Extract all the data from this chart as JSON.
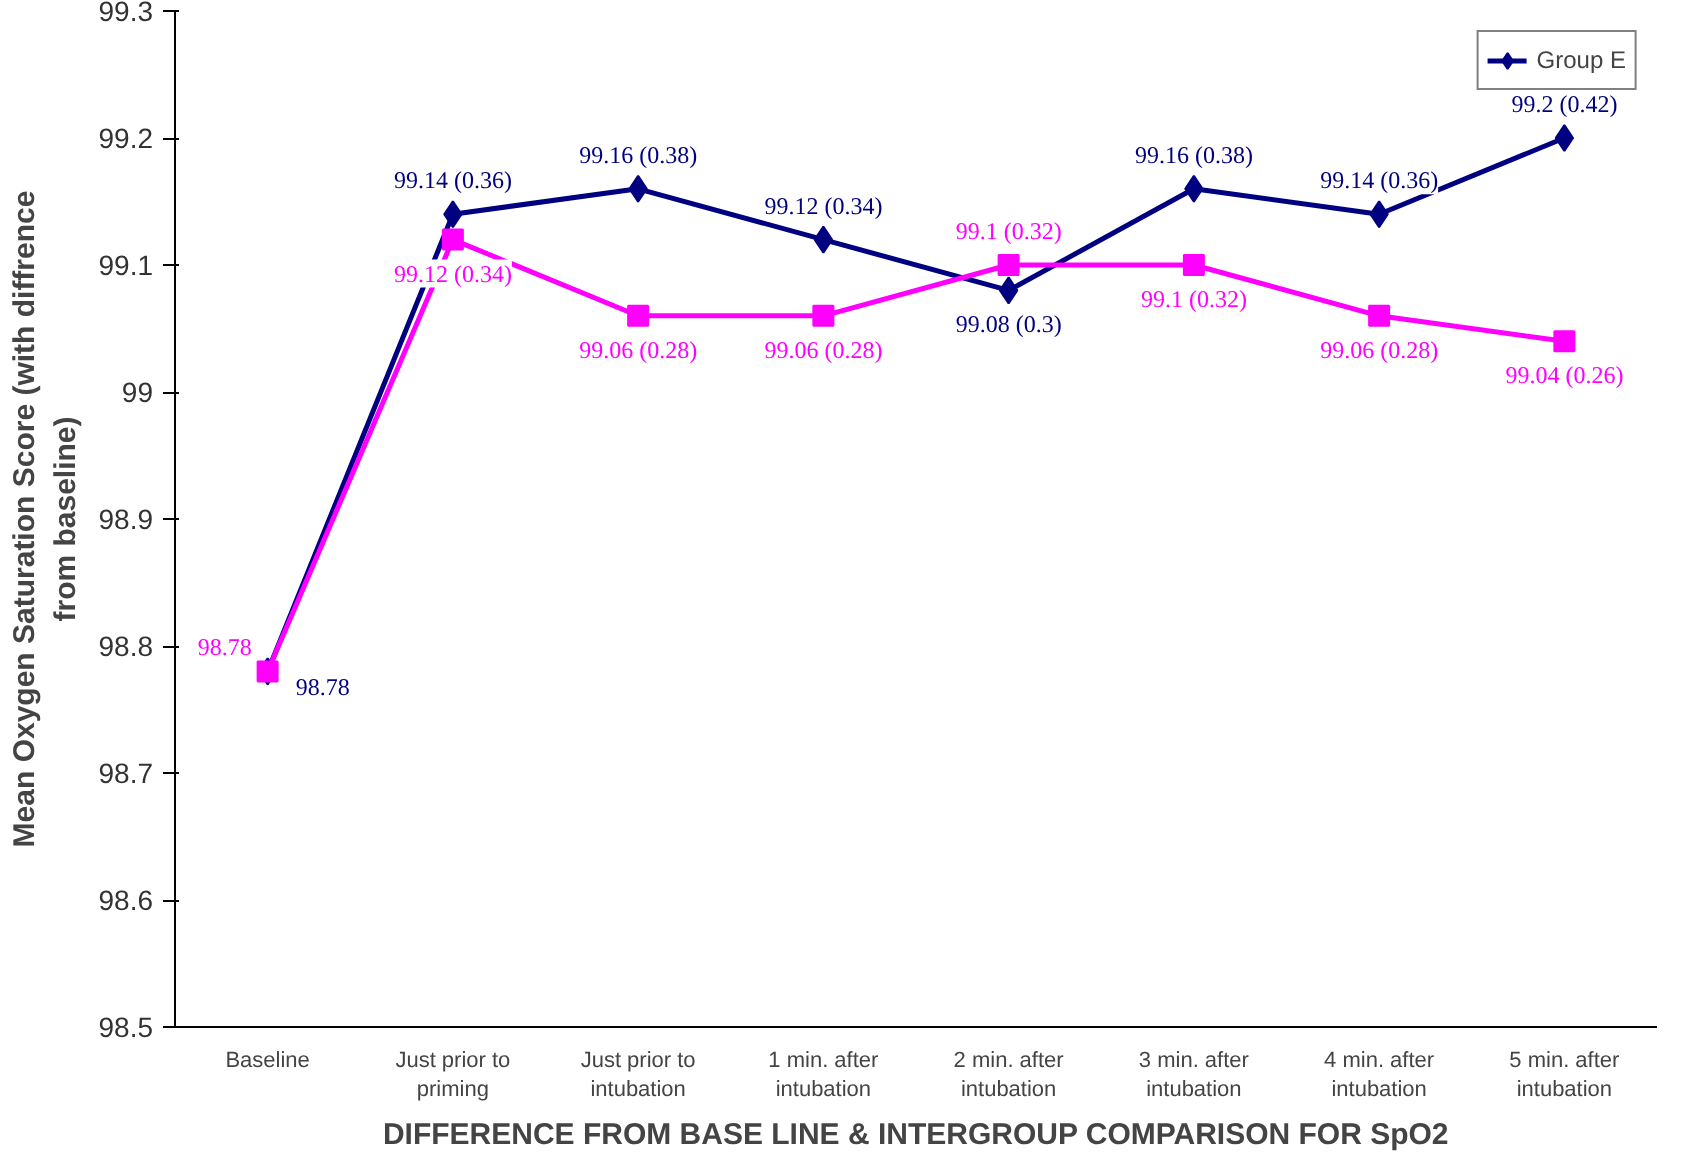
{
  "chart_data": {
    "type": "line",
    "xlabel": "DIFFERENCE FROM BASE LINE & INTERGROUP COMPARISON FOR SpO2",
    "ylabel": "Mean Oxygen Saturation Score (with diffrence from baseline)",
    "categories": [
      "Baseline",
      "Just prior to priming",
      "Just prior to intubation",
      "1 min. after intubation",
      "2 min. after intubation",
      "3 min. after intubation",
      "4 min. after intubation",
      "5 min. after intubation"
    ],
    "series": [
      {
        "name": "Group E",
        "color": "#000080",
        "marker": "diamond",
        "values": [
          98.78,
          99.14,
          99.16,
          99.12,
          99.08,
          99.16,
          99.14,
          99.2
        ],
        "value_labels": [
          "98.78",
          "99.14 (0.36)",
          "99.16 (0.38)",
          "99.12 (0.34)",
          "99.08 (0.3)",
          "99.16 (0.38)",
          "99.14 (0.36)",
          "99.2 (0.42)"
        ]
      },
      {
        "color": "#ff00ff",
        "marker": "square",
        "values": [
          98.78,
          99.12,
          99.06,
          99.06,
          99.1,
          99.1,
          99.06,
          99.04
        ],
        "value_labels": [
          "98.78",
          "99.12 (0.34)",
          "99.06 (0.28)",
          "99.06 (0.28)",
          "99.1 (0.32)",
          "99.1 (0.32)",
          "99.06 (0.28)",
          "99.04 (0.26)"
        ]
      }
    ],
    "ylim": [
      98.5,
      99.3
    ],
    "yticks": [
      98.5,
      98.6,
      98.7,
      98.8,
      98.9,
      99,
      99.1,
      99.2,
      99.3
    ],
    "grid": false,
    "legend": "top right"
  }
}
